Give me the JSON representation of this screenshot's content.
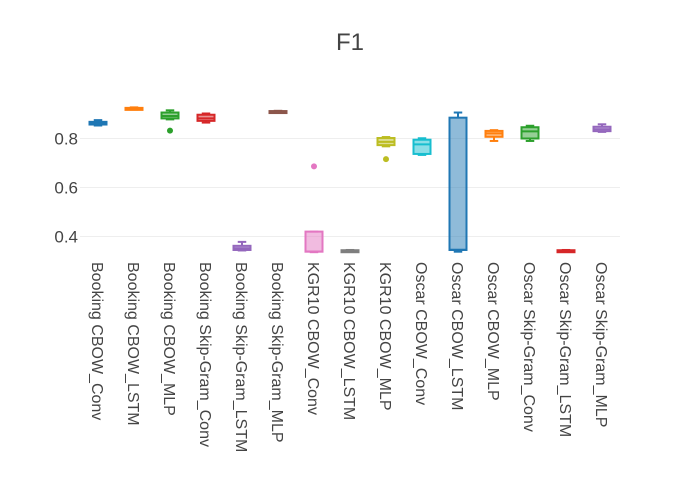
{
  "chart_data": {
    "type": "box",
    "title": "F1",
    "xlabel": "",
    "ylabel": "",
    "ylim": [
      0.33,
      1.0
    ],
    "yticks": [
      0.4,
      0.6,
      0.8
    ],
    "grid": true,
    "legend": "none",
    "categories": [
      "Booking CBOW_Conv",
      "Booking CBOW_LSTM",
      "Booking CBOW_MLP",
      "Booking Skip-Gram_Conv",
      "Booking Skip-Gram_LSTM",
      "Booking Skip-Gram_MLP",
      "KGR10 CBOW_Conv",
      "KGR10 CBOW_LSTM",
      "KGR10 CBOW_MLP",
      "Oscar CBOW_Conv",
      "Oscar CBOW_LSTM",
      "Oscar CBOW_MLP",
      "Oscar Skip-Gram_Conv",
      "Oscar Skip-Gram_LSTM",
      "Oscar Skip-Gram_MLP"
    ],
    "boxes": [
      {
        "min": 0.853,
        "q1": 0.857,
        "median": 0.862,
        "q3": 0.868,
        "max": 0.875,
        "outliers": [],
        "color": "#1f77b4"
      },
      {
        "min": 0.918,
        "q1": 0.919,
        "median": 0.922,
        "q3": 0.925,
        "max": 0.927,
        "outliers": [],
        "color": "#ff7f0e"
      },
      {
        "min": 0.878,
        "q1": 0.882,
        "median": 0.892,
        "q3": 0.906,
        "max": 0.915,
        "outliers": [
          0.832
        ],
        "color": "#2ca02c"
      },
      {
        "min": 0.865,
        "q1": 0.872,
        "median": 0.882,
        "q3": 0.897,
        "max": 0.902,
        "outliers": [],
        "color": "#d62728"
      },
      {
        "min": 0.343,
        "q1": 0.345,
        "median": 0.352,
        "q3": 0.362,
        "max": 0.378,
        "outliers": [],
        "color": "#9467bd"
      },
      {
        "min": 0.907,
        "q1": 0.908,
        "median": 0.91,
        "q3": 0.912,
        "max": 0.913,
        "outliers": [],
        "color": "#8c564b"
      },
      {
        "min": 0.336,
        "q1": 0.338,
        "median": 0.339,
        "q3": 0.42,
        "max": 0.42,
        "outliers": [
          0.686
        ],
        "color": "#e377c2"
      },
      {
        "min": 0.339,
        "q1": 0.34,
        "median": 0.342,
        "q3": 0.344,
        "max": 0.345,
        "outliers": [],
        "color": "#7f7f7f"
      },
      {
        "min": 0.768,
        "q1": 0.773,
        "median": 0.786,
        "q3": 0.802,
        "max": 0.806,
        "outliers": [
          0.716
        ],
        "color": "#bcbd22"
      },
      {
        "min": 0.733,
        "q1": 0.737,
        "median": 0.776,
        "q3": 0.795,
        "max": 0.801,
        "outliers": [],
        "color": "#17becf"
      },
      {
        "min": 0.338,
        "q1": 0.345,
        "median": 0.346,
        "q3": 0.885,
        "max": 0.906,
        "outliers": [],
        "color": "#1f77b4"
      },
      {
        "min": 0.79,
        "q1": 0.807,
        "median": 0.821,
        "q3": 0.831,
        "max": 0.834,
        "outliers": [],
        "color": "#ff7f0e"
      },
      {
        "min": 0.79,
        "q1": 0.8,
        "median": 0.829,
        "q3": 0.846,
        "max": 0.852,
        "outliers": [],
        "color": "#2ca02c"
      },
      {
        "min": 0.338,
        "q1": 0.34,
        "median": 0.342,
        "q3": 0.344,
        "max": 0.345,
        "outliers": [],
        "color": "#d62728"
      },
      {
        "min": 0.827,
        "q1": 0.83,
        "median": 0.838,
        "q3": 0.848,
        "max": 0.858,
        "outliers": [],
        "color": "#9467bd"
      }
    ]
  }
}
